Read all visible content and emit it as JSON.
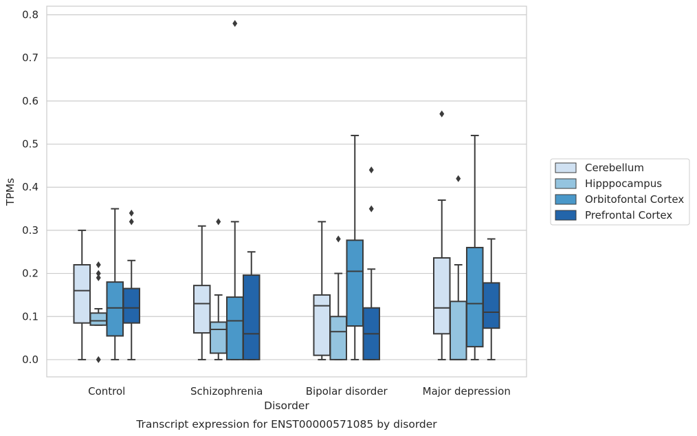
{
  "chart_data": {
    "type": "box",
    "title": "Transcript expression for ENST00000571085 by disorder",
    "xlabel": "Disorder",
    "ylabel": "TPMs",
    "ylim": [
      -0.04,
      0.82
    ],
    "yticks": [
      "0.0",
      "0.1",
      "0.2",
      "0.3",
      "0.4",
      "0.5",
      "0.6",
      "0.7",
      "0.8"
    ],
    "categories": [
      "Control",
      "Schizophrenia",
      "Bipolar disorder",
      "Major depression"
    ],
    "grid": "horizontal",
    "legend_placement": "right",
    "series": [
      {
        "name": "Cerebellum",
        "color": "#d0e1f2",
        "boxes": [
          {
            "whislo": 0.0,
            "q1": 0.085,
            "med": 0.16,
            "q3": 0.22,
            "whishi": 0.3,
            "fliers": []
          },
          {
            "whislo": 0.0,
            "q1": 0.062,
            "med": 0.13,
            "q3": 0.172,
            "whishi": 0.31,
            "fliers": []
          },
          {
            "whislo": 0.0,
            "q1": 0.01,
            "med": 0.125,
            "q3": 0.15,
            "whishi": 0.32,
            "fliers": []
          },
          {
            "whislo": 0.0,
            "q1": 0.06,
            "med": 0.12,
            "q3": 0.236,
            "whishi": 0.37,
            "fliers": [
              0.57
            ]
          }
        ]
      },
      {
        "name": "Hipppocampus",
        "color": "#94c4df",
        "boxes": [
          {
            "whislo": 0.08,
            "q1": 0.08,
            "med": 0.09,
            "q3": 0.108,
            "whishi": 0.118,
            "fliers": [
              0.0,
              0.19,
              0.2,
              0.22
            ]
          },
          {
            "whislo": 0.0,
            "q1": 0.015,
            "med": 0.07,
            "q3": 0.087,
            "whishi": 0.15,
            "fliers": [
              0.32
            ]
          },
          {
            "whislo": 0.0,
            "q1": 0.0,
            "med": 0.065,
            "q3": 0.1,
            "whishi": 0.2,
            "fliers": [
              0.28
            ]
          },
          {
            "whislo": 0.0,
            "q1": 0.0,
            "med": 0.0,
            "q3": 0.135,
            "whishi": 0.22,
            "fliers": [
              0.42
            ]
          }
        ]
      },
      {
        "name": "Orbitofontal Cortex",
        "color": "#4a98c9",
        "boxes": [
          {
            "whislo": 0.0,
            "q1": 0.055,
            "med": 0.12,
            "q3": 0.18,
            "whishi": 0.35,
            "fliers": []
          },
          {
            "whislo": 0.0,
            "q1": 0.0,
            "med": 0.09,
            "q3": 0.145,
            "whishi": 0.32,
            "fliers": [
              0.78
            ]
          },
          {
            "whislo": 0.0,
            "q1": 0.078,
            "med": 0.205,
            "q3": 0.277,
            "whishi": 0.52,
            "fliers": []
          },
          {
            "whislo": 0.0,
            "q1": 0.03,
            "med": 0.13,
            "q3": 0.26,
            "whishi": 0.52,
            "fliers": []
          }
        ]
      },
      {
        "name": "Prefrontal Cortex",
        "color": "#2365aa",
        "boxes": [
          {
            "whislo": 0.0,
            "q1": 0.085,
            "med": 0.12,
            "q3": 0.165,
            "whishi": 0.23,
            "fliers": [
              0.32,
              0.34
            ]
          },
          {
            "whislo": 0.0,
            "q1": 0.0,
            "med": 0.06,
            "q3": 0.196,
            "whishi": 0.25,
            "fliers": []
          },
          {
            "whislo": 0.0,
            "q1": 0.0,
            "med": 0.06,
            "q3": 0.12,
            "whishi": 0.21,
            "fliers": [
              0.35,
              0.44
            ]
          },
          {
            "whislo": 0.0,
            "q1": 0.073,
            "med": 0.11,
            "q3": 0.178,
            "whishi": 0.28,
            "fliers": []
          }
        ]
      }
    ]
  }
}
